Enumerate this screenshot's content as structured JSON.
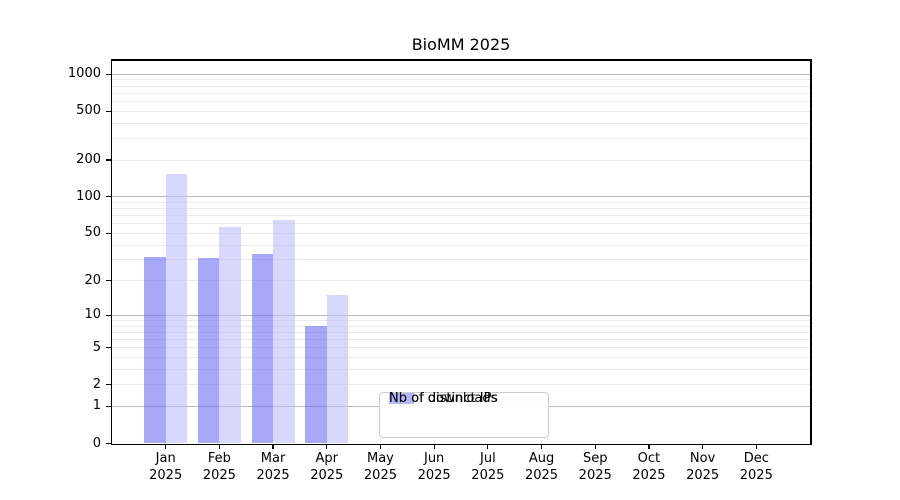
{
  "title": "BioMM 2025",
  "chart_data": {
    "type": "bar",
    "title": "BioMM 2025",
    "yscale": "log1p",
    "ylim": [
      0,
      1295
    ],
    "yticks": [
      0,
      1,
      2,
      5,
      10,
      20,
      50,
      100,
      200,
      500,
      1000
    ],
    "grid": "on",
    "legend_position": "inside-lower-center",
    "x_labels": [
      [
        "Jan",
        "2025"
      ],
      [
        "Feb",
        "2025"
      ],
      [
        "Mar",
        "2025"
      ],
      [
        "Apr",
        "2025"
      ],
      [
        "May",
        "2025"
      ],
      [
        "Jun",
        "2025"
      ],
      [
        "Jul",
        "2025"
      ],
      [
        "Aug",
        "2025"
      ],
      [
        "Sep",
        "2025"
      ],
      [
        "Oct",
        "2025"
      ],
      [
        "Nov",
        "2025"
      ],
      [
        "Dec",
        "2025"
      ]
    ],
    "series": [
      {
        "name": "Nb of distinct IPs",
        "color": "rgba(110,110,245,0.6)",
        "values": [
          32,
          31,
          34,
          8,
          0,
          0,
          0,
          0,
          0,
          0,
          0,
          0
        ]
      },
      {
        "name": "Nb of downloads",
        "color": "rgba(190,190,250,0.6)",
        "values": [
          153,
          56,
          64,
          15,
          0,
          0,
          0,
          0,
          0,
          0,
          0,
          0
        ]
      }
    ]
  },
  "colors": {
    "bar_distinct_ips": "rgba(110,110,245,0.6)",
    "bar_downloads": "rgba(190,190,250,0.6)",
    "grid_major": "#b9b9b9",
    "grid_minor": "#ebebeb",
    "spine": "#000000",
    "text": "#000000",
    "legend_border": "#cccccc",
    "background": "#ffffff"
  }
}
